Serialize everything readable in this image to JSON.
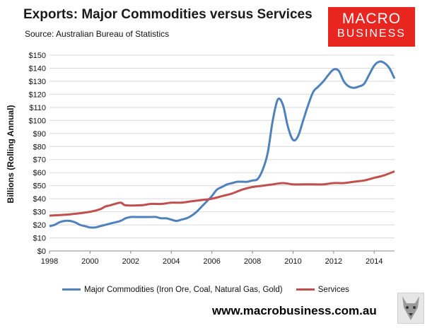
{
  "header": {
    "title": "Exports: Major Commodities versus Services",
    "source_label": "Source:",
    "source_value": "Australian Bureau of Statistics"
  },
  "brand": {
    "line1": "MACRO",
    "line2": "BUSINESS",
    "color": "#e8251f"
  },
  "footer": {
    "website": "www.macrobusiness.com.au",
    "mascot_icon": "wolf-logo-icon"
  },
  "chart_data": {
    "type": "line",
    "title": "Exports: Major Commodities versus Services",
    "xlabel": "",
    "ylabel": "Billions (Rolling Annual)",
    "xlim": [
      1998,
      2015
    ],
    "ylim": [
      0,
      150
    ],
    "x_ticks": [
      1998,
      2000,
      2002,
      2004,
      2006,
      2008,
      2010,
      2012,
      2014
    ],
    "y_ticks": [
      "$0",
      "$10",
      "$20",
      "$30",
      "$40",
      "$50",
      "$60",
      "$70",
      "$80",
      "$90",
      "$100",
      "$110",
      "$120",
      "$130",
      "$140",
      "$150"
    ],
    "grid": true,
    "legend_position": "bottom",
    "series": [
      {
        "name": "Major Commodities (Iron Ore, Coal, Natural Gas, Gold)",
        "color": "#4f81bd",
        "points": [
          [
            1998.0,
            19
          ],
          [
            1998.25,
            20
          ],
          [
            1998.5,
            22
          ],
          [
            1998.75,
            23
          ],
          [
            1999.0,
            23
          ],
          [
            1999.25,
            22
          ],
          [
            1999.5,
            20
          ],
          [
            1999.75,
            19
          ],
          [
            2000.0,
            18
          ],
          [
            2000.25,
            18
          ],
          [
            2000.5,
            19
          ],
          [
            2000.75,
            20
          ],
          [
            2001.0,
            21
          ],
          [
            2001.25,
            22
          ],
          [
            2001.5,
            23
          ],
          [
            2001.75,
            25
          ],
          [
            2002.0,
            26
          ],
          [
            2002.25,
            26
          ],
          [
            2002.5,
            26
          ],
          [
            2002.75,
            26
          ],
          [
            2003.0,
            26
          ],
          [
            2003.25,
            26
          ],
          [
            2003.5,
            25
          ],
          [
            2003.75,
            25
          ],
          [
            2004.0,
            24
          ],
          [
            2004.25,
            23
          ],
          [
            2004.5,
            24
          ],
          [
            2004.75,
            25
          ],
          [
            2005.0,
            27
          ],
          [
            2005.25,
            30
          ],
          [
            2005.5,
            34
          ],
          [
            2005.75,
            38
          ],
          [
            2006.0,
            42
          ],
          [
            2006.25,
            47
          ],
          [
            2006.5,
            49
          ],
          [
            2006.75,
            51
          ],
          [
            2007.0,
            52
          ],
          [
            2007.25,
            53
          ],
          [
            2007.5,
            53
          ],
          [
            2007.75,
            53
          ],
          [
            2008.0,
            54
          ],
          [
            2008.25,
            55
          ],
          [
            2008.5,
            62
          ],
          [
            2008.75,
            75
          ],
          [
            2009.0,
            100
          ],
          [
            2009.25,
            116
          ],
          [
            2009.5,
            112
          ],
          [
            2009.75,
            95
          ],
          [
            2010.0,
            85
          ],
          [
            2010.25,
            88
          ],
          [
            2010.5,
            100
          ],
          [
            2010.75,
            112
          ],
          [
            2011.0,
            122
          ],
          [
            2011.25,
            126
          ],
          [
            2011.5,
            130
          ],
          [
            2011.75,
            135
          ],
          [
            2012.0,
            139
          ],
          [
            2012.25,
            138
          ],
          [
            2012.5,
            130
          ],
          [
            2012.75,
            126
          ],
          [
            2013.0,
            125
          ],
          [
            2013.25,
            126
          ],
          [
            2013.5,
            128
          ],
          [
            2013.75,
            135
          ],
          [
            2014.0,
            142
          ],
          [
            2014.25,
            145
          ],
          [
            2014.5,
            144
          ],
          [
            2014.75,
            140
          ],
          [
            2015.0,
            132
          ]
        ]
      },
      {
        "name": "Services",
        "color": "#c0504d",
        "points": [
          [
            1998.0,
            27
          ],
          [
            1999.0,
            28
          ],
          [
            2000.0,
            30
          ],
          [
            2000.5,
            32
          ],
          [
            2000.75,
            34
          ],
          [
            2001.0,
            35
          ],
          [
            2001.5,
            37
          ],
          [
            2001.75,
            35
          ],
          [
            2002.5,
            35
          ],
          [
            2003.0,
            36
          ],
          [
            2003.5,
            36
          ],
          [
            2004.0,
            37
          ],
          [
            2004.5,
            37
          ],
          [
            2005.0,
            38
          ],
          [
            2005.5,
            39
          ],
          [
            2006.0,
            40
          ],
          [
            2006.5,
            42
          ],
          [
            2007.0,
            44
          ],
          [
            2007.5,
            47
          ],
          [
            2008.0,
            49
          ],
          [
            2008.5,
            50
          ],
          [
            2009.0,
            51
          ],
          [
            2009.5,
            52
          ],
          [
            2010.0,
            51
          ],
          [
            2010.5,
            51
          ],
          [
            2011.0,
            51
          ],
          [
            2011.5,
            51
          ],
          [
            2012.0,
            52
          ],
          [
            2012.5,
            52
          ],
          [
            2013.0,
            53
          ],
          [
            2013.5,
            54
          ],
          [
            2014.0,
            56
          ],
          [
            2014.5,
            58
          ],
          [
            2015.0,
            61
          ]
        ]
      }
    ]
  }
}
